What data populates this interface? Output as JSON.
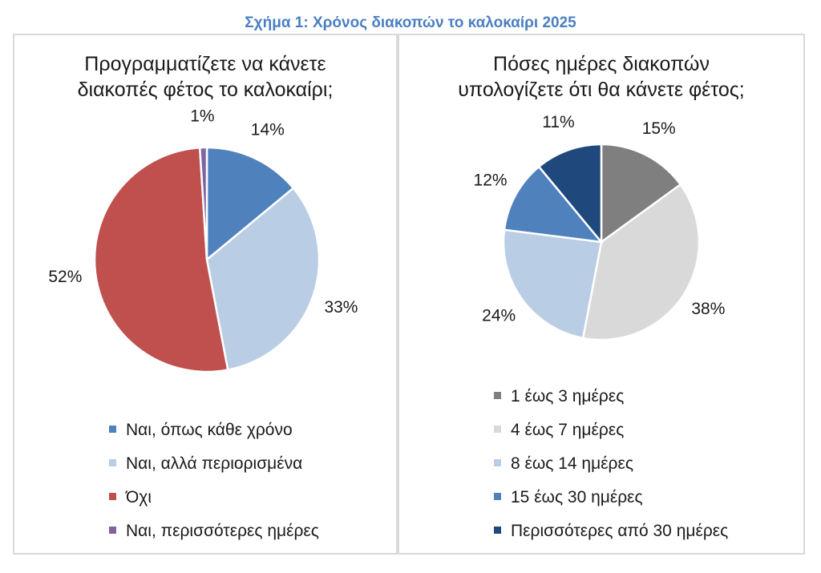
{
  "figure_title": "Σχήμα 1: Χρόνος διακοπών το καλοκαίρι 2025",
  "chart_data": [
    {
      "type": "pie",
      "title_lines": [
        "Προγραμματίζετε να κάνετε",
        "διακοπές φέτος το καλοκαίρι;"
      ],
      "categories": [
        "Ναι, όπως κάθε χρόνο",
        "Ναι, αλλά περιορισμένα",
        "Όχι",
        "Ναι, περισσότερες ημέρες"
      ],
      "values": [
        14,
        33,
        52,
        1
      ],
      "labels": [
        "14%",
        "33%",
        "52%",
        "1%"
      ],
      "colors": [
        "#4f81bd",
        "#b9cde5",
        "#c0504d",
        "#8064a2"
      ],
      "legend_placement": "bottom"
    },
    {
      "type": "pie",
      "title_lines": [
        "Πόσες ημέρες διακοπών",
        "υπολογίζετε ότι θα κάνετε φέτος;"
      ],
      "categories": [
        "1 έως 3 ημέρες",
        "4 έως 7 ημέρες",
        "8 έως 14 ημέρες",
        "15 έως 30 ημέρες",
        "Περισσότερες από 30 ημέρες"
      ],
      "values": [
        15,
        38,
        24,
        12,
        11
      ],
      "labels": [
        "15%",
        "38%",
        "24%",
        "12%",
        "11%"
      ],
      "colors": [
        "#7f7f7f",
        "#d9d9d9",
        "#b9cde5",
        "#4f81bd",
        "#1f497d"
      ],
      "legend_placement": "bottom"
    }
  ]
}
